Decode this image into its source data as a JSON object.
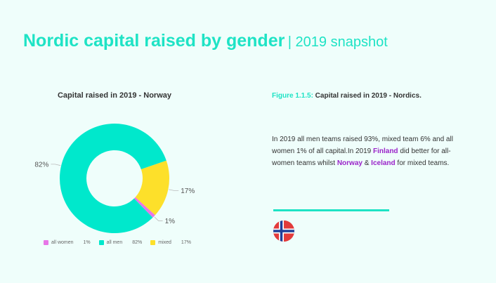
{
  "header": {
    "title": "Nordic capital raised by gender",
    "subtitle": "| 2019 snapshot"
  },
  "chart_data": {
    "type": "pie",
    "title": "Capital raised in 2019 - Norway",
    "labels": [
      "all women",
      "all men",
      "mixed"
    ],
    "values": [
      1,
      82,
      17
    ],
    "value_labels": [
      "1%",
      "82%",
      "17%"
    ],
    "colors": [
      "#e776e7",
      "#00e8cc",
      "#fde02a"
    ],
    "legend_position": "bottom",
    "style": "donut"
  },
  "caption": {
    "figure": "Figure 1.1.5:",
    "text": " Capital raised in 2019 - Nordics."
  },
  "body": {
    "part1": "In 2019 all men teams raised 93%, mixed team 6% and all women 1% of all capital.In 2019 ",
    "finland": "Finland",
    "part2": " did better for all-women teams whilst ",
    "norway": "Norway",
    "amp": " & ",
    "iceland": "Iceland",
    "part3": " for mixed teams."
  },
  "flag": {
    "icon": "norway-flag-icon"
  }
}
